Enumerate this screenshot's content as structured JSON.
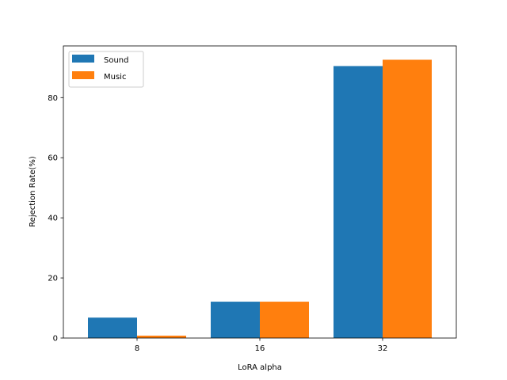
{
  "chart_data": {
    "type": "bar",
    "categories": [
      "8",
      "16",
      "32"
    ],
    "series": [
      {
        "name": "Sound",
        "values": [
          6.8,
          12.1,
          90.5
        ],
        "color": "#1f77b4"
      },
      {
        "name": "Music",
        "values": [
          0.8,
          12.1,
          92.6
        ],
        "color": "#ff7f0e"
      }
    ],
    "xlabel": "LoRA alpha",
    "ylabel": "Rejection Rate(%)",
    "ylim": [
      0,
      97.2
    ],
    "yticks": [
      0,
      20,
      40,
      60,
      80
    ],
    "grid": false,
    "legend_position": "upper-left"
  }
}
